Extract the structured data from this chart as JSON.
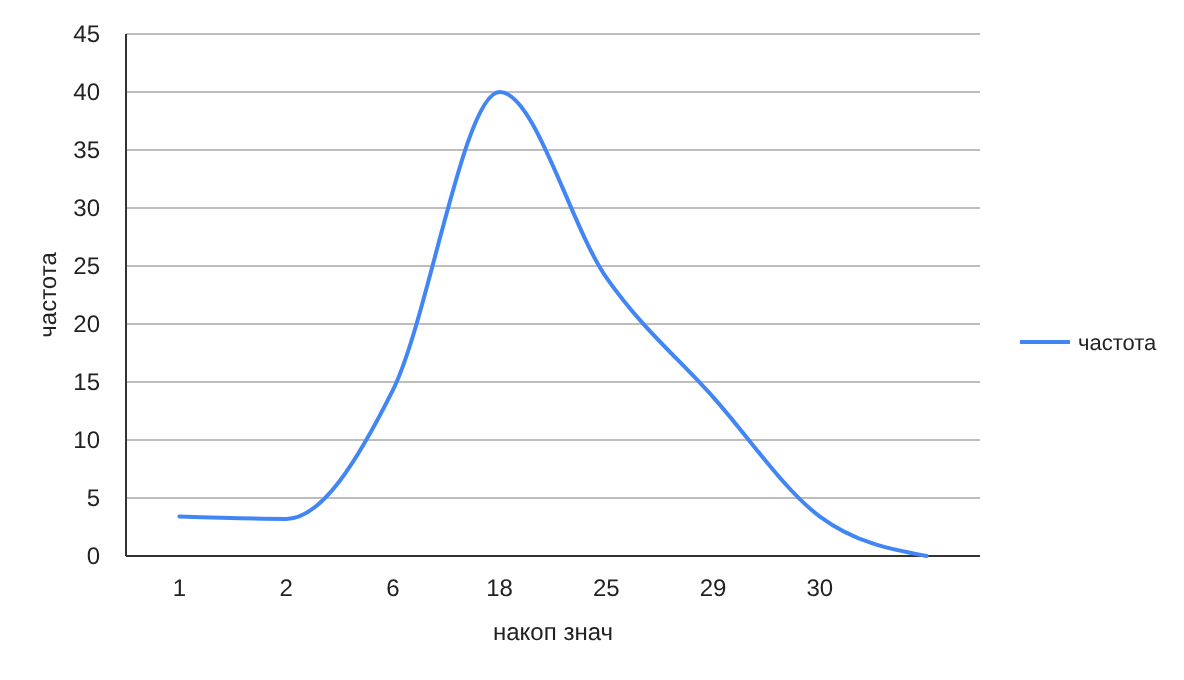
{
  "chart_data": {
    "type": "line",
    "xlabel": "накоп знач",
    "ylabel": "частота",
    "categories": [
      "1",
      "2",
      "6",
      "18",
      "25",
      "29",
      "30",
      null
    ],
    "series": [
      {
        "name": "частота",
        "color": "#4285f4",
        "values": [
          3.4,
          3.2,
          14.3,
          40,
          24,
          13.7,
          3.4,
          0
        ]
      }
    ],
    "ylim": [
      0,
      45
    ],
    "yticks": [
      0,
      5,
      10,
      15,
      20,
      25,
      30,
      35,
      40,
      45
    ],
    "grid": "y",
    "legend": "right",
    "marker": "none",
    "line_style": "solid"
  }
}
